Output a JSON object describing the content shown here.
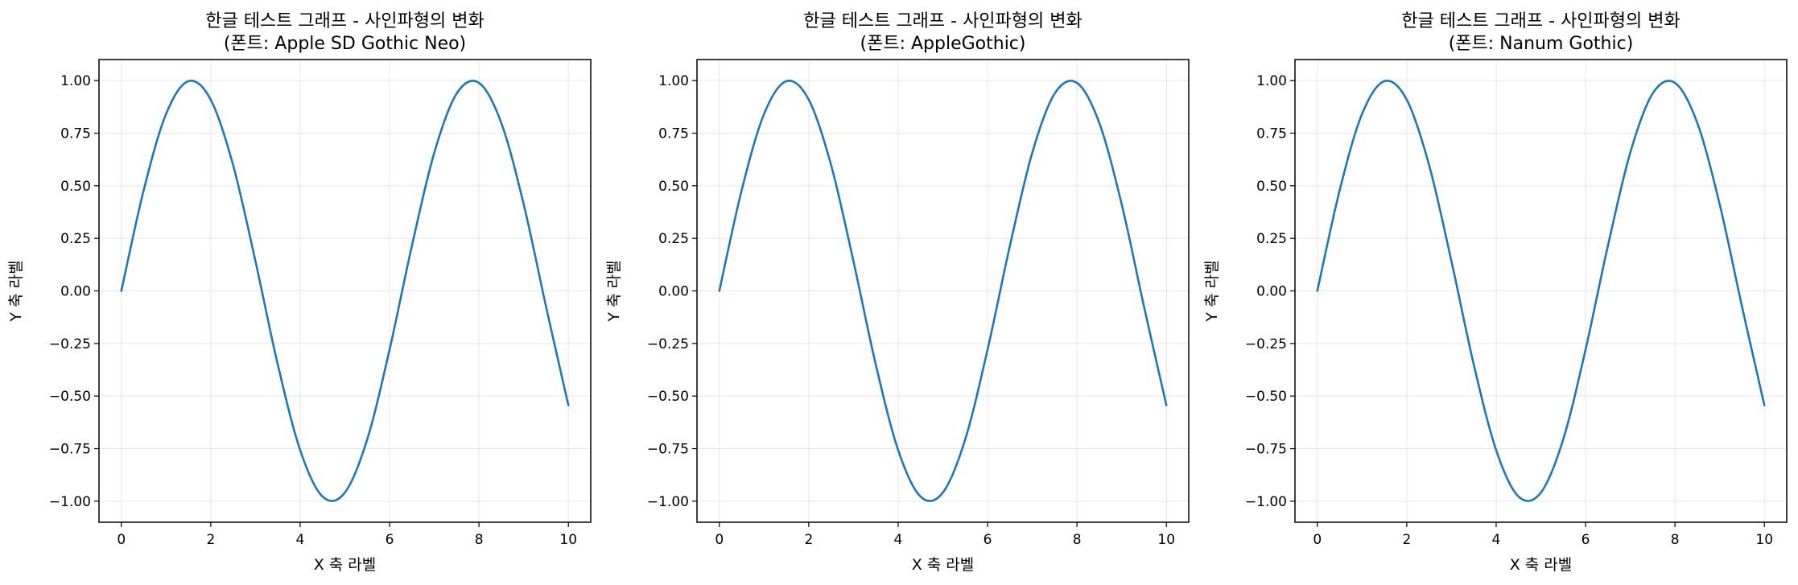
{
  "chart_data": [
    {
      "type": "line",
      "title_line1": "한글 테스트 그래프 - 사인파형의 변화",
      "title_line2": "(폰트: Apple SD Gothic Neo)",
      "xlabel": "X 축 라벨",
      "ylabel": "Y 축 라벨",
      "xlim": [
        -0.5,
        10.5
      ],
      "ylim": [
        -1.1,
        1.1
      ],
      "xticks": [
        0,
        2,
        4,
        6,
        8,
        10
      ],
      "xtick_labels": [
        "0",
        "2",
        "4",
        "6",
        "8",
        "10"
      ],
      "yticks": [
        1.0,
        0.75,
        0.5,
        0.25,
        0.0,
        -0.25,
        -0.5,
        -0.75,
        -1.0
      ],
      "ytick_labels": [
        "1.00",
        "0.75",
        "0.50",
        "0.25",
        "0.00",
        "−0.25",
        "−0.50",
        "−0.75",
        "−1.00"
      ],
      "grid": true,
      "series": [
        {
          "color": "#1f77b4",
          "x": [
            0,
            0.5,
            1.0,
            1.5,
            2.0,
            2.5,
            3.0,
            3.5,
            4.0,
            4.5,
            5.0,
            5.5,
            6.0,
            6.5,
            7.0,
            7.5,
            8.0,
            8.5,
            9.0,
            9.5,
            10.0
          ],
          "y": [
            0.0,
            0.479,
            0.841,
            0.997,
            0.909,
            0.598,
            0.141,
            -0.351,
            -0.757,
            -0.978,
            -0.959,
            -0.706,
            -0.279,
            0.215,
            0.657,
            0.938,
            0.989,
            0.798,
            0.412,
            -0.075,
            -0.544
          ]
        }
      ]
    },
    {
      "type": "line",
      "title_line1": "한글 테스트 그래프 - 사인파형의 변화",
      "title_line2": "(폰트: AppleGothic)",
      "xlabel": "X 축 라벨",
      "ylabel": "Y 축 라벨",
      "xlim": [
        -0.5,
        10.5
      ],
      "ylim": [
        -1.1,
        1.1
      ],
      "xticks": [
        0,
        2,
        4,
        6,
        8,
        10
      ],
      "xtick_labels": [
        "0",
        "2",
        "4",
        "6",
        "8",
        "10"
      ],
      "yticks": [
        1.0,
        0.75,
        0.5,
        0.25,
        0.0,
        -0.25,
        -0.5,
        -0.75,
        -1.0
      ],
      "ytick_labels": [
        "1.00",
        "0.75",
        "0.50",
        "0.25",
        "0.00",
        "−0.25",
        "−0.50",
        "−0.75",
        "−1.00"
      ],
      "grid": true,
      "series": [
        {
          "color": "#1f77b4",
          "x": [
            0,
            0.5,
            1.0,
            1.5,
            2.0,
            2.5,
            3.0,
            3.5,
            4.0,
            4.5,
            5.0,
            5.5,
            6.0,
            6.5,
            7.0,
            7.5,
            8.0,
            8.5,
            9.0,
            9.5,
            10.0
          ],
          "y": [
            0.0,
            0.479,
            0.841,
            0.997,
            0.909,
            0.598,
            0.141,
            -0.351,
            -0.757,
            -0.978,
            -0.959,
            -0.706,
            -0.279,
            0.215,
            0.657,
            0.938,
            0.989,
            0.798,
            0.412,
            -0.075,
            -0.544
          ]
        }
      ]
    },
    {
      "type": "line",
      "title_line1": "한글 테스트 그래프 - 사인파형의 변화",
      "title_line2": "(폰트: Nanum Gothic)",
      "xlabel": "X 축 라벨",
      "ylabel": "Y 축 라벨",
      "xlim": [
        -0.5,
        10.5
      ],
      "ylim": [
        -1.1,
        1.1
      ],
      "xticks": [
        0,
        2,
        4,
        6,
        8,
        10
      ],
      "xtick_labels": [
        "0",
        "2",
        "4",
        "6",
        "8",
        "10"
      ],
      "yticks": [
        1.0,
        0.75,
        0.5,
        0.25,
        0.0,
        -0.25,
        -0.5,
        -0.75,
        -1.0
      ],
      "ytick_labels": [
        "1.00",
        "0.75",
        "0.50",
        "0.25",
        "0.00",
        "−0.25",
        "−0.50",
        "−0.75",
        "−1.00"
      ],
      "grid": true,
      "series": [
        {
          "color": "#1f77b4",
          "x": [
            0,
            0.5,
            1.0,
            1.5,
            2.0,
            2.5,
            3.0,
            3.5,
            4.0,
            4.5,
            5.0,
            5.5,
            6.0,
            6.5,
            7.0,
            7.5,
            8.0,
            8.5,
            9.0,
            9.5,
            10.0
          ],
          "y": [
            0.0,
            0.479,
            0.841,
            0.997,
            0.909,
            0.598,
            0.141,
            -0.351,
            -0.757,
            -0.978,
            -0.959,
            -0.706,
            -0.279,
            0.215,
            0.657,
            0.938,
            0.989,
            0.798,
            0.412,
            -0.075,
            -0.544
          ]
        }
      ]
    }
  ]
}
